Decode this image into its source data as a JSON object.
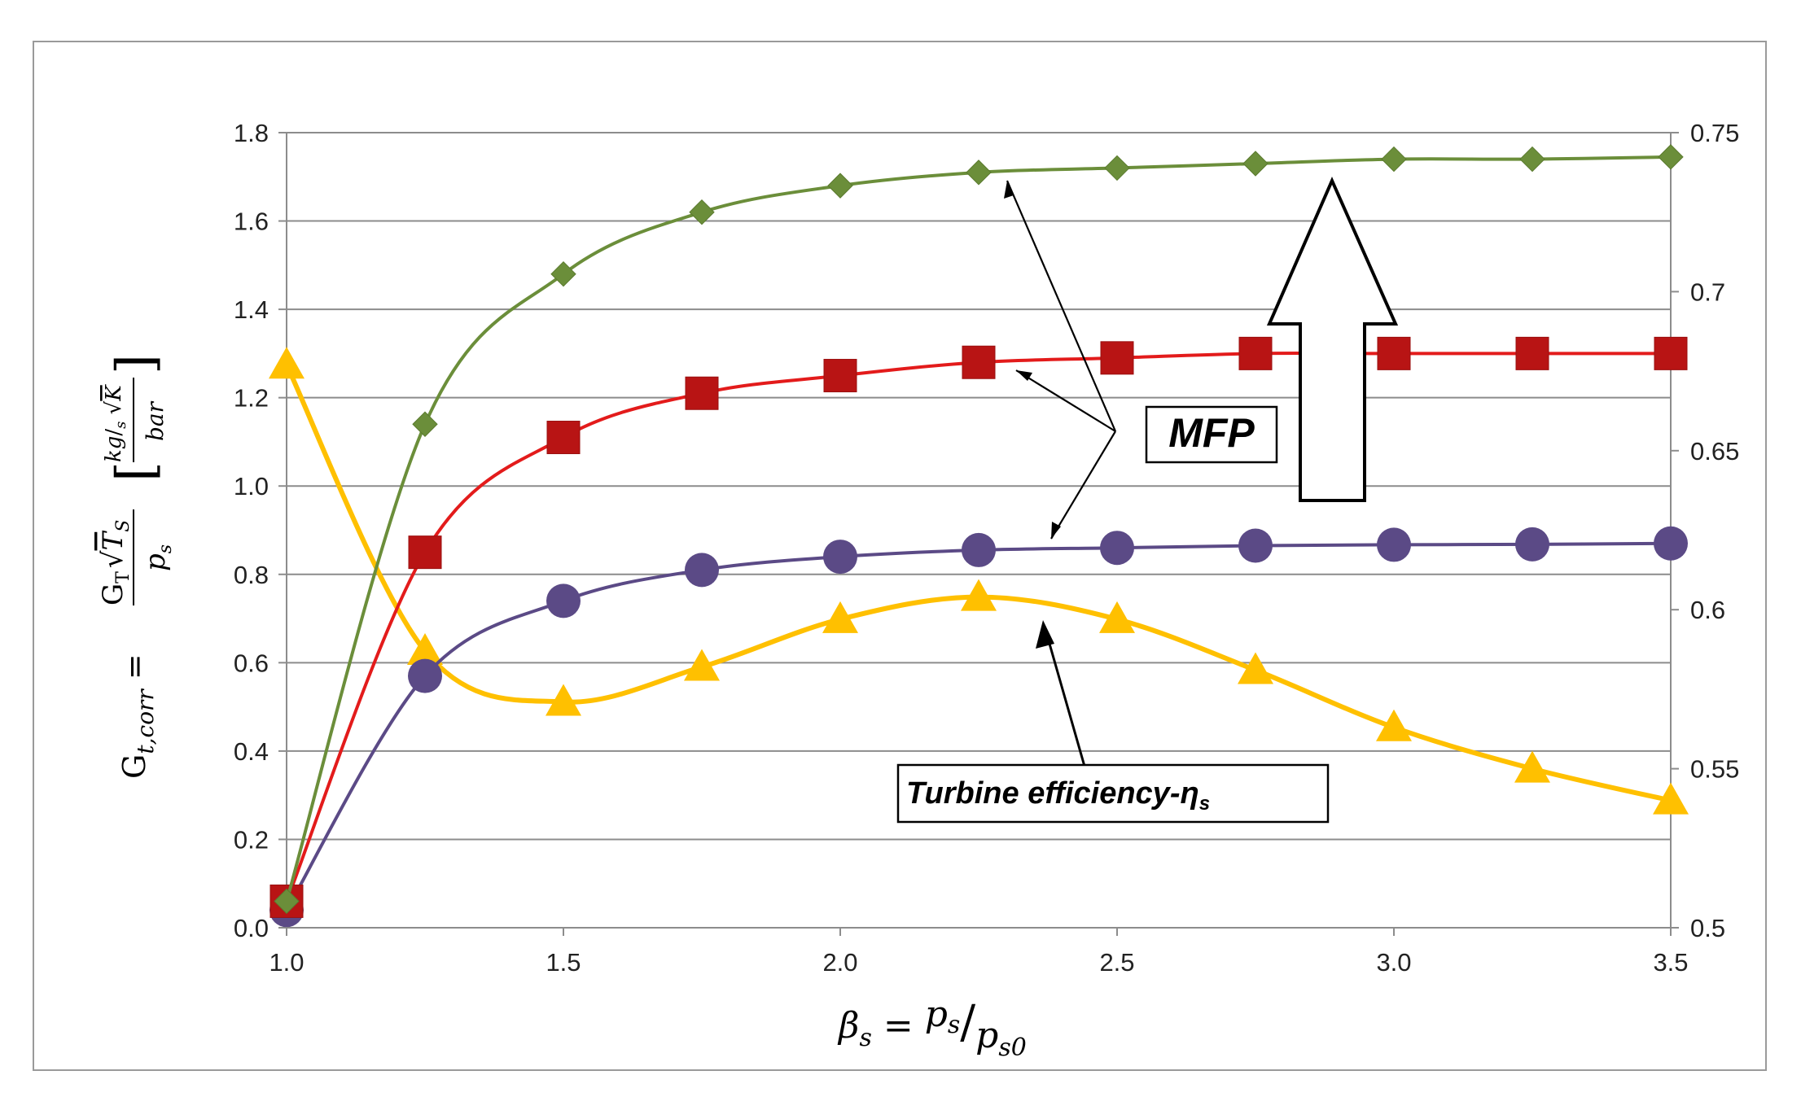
{
  "chart_data": {
    "type": "line",
    "title": "",
    "x": [
      1.0,
      1.25,
      1.5,
      1.75,
      2.0,
      2.25,
      2.5,
      2.75,
      3.0,
      3.25,
      3.5
    ],
    "xlim": [
      1.0,
      3.5
    ],
    "xticks": [
      "1.0",
      "1.5",
      "2.0",
      "2.5",
      "3.0",
      "3.5"
    ],
    "xtick_values": [
      1.0,
      1.5,
      2.0,
      2.5,
      3.0,
      3.5
    ],
    "ylim": [
      0.0,
      1.8
    ],
    "yticks": [
      "0.0",
      "0.2",
      "0.4",
      "0.6",
      "0.8",
      "1.0",
      "1.2",
      "1.4",
      "1.6",
      "1.8"
    ],
    "ytick_values": [
      0.0,
      0.2,
      0.4,
      0.6,
      0.8,
      1.0,
      1.2,
      1.4,
      1.6,
      1.8
    ],
    "y2lim": [
      0.5,
      0.75
    ],
    "y2ticks": [
      "0.5",
      "0.55",
      "0.6",
      "0.65",
      "0.7",
      "0.75"
    ],
    "y2tick_values": [
      0.5,
      0.55,
      0.6,
      0.65,
      0.7,
      0.75
    ],
    "grid": true,
    "series": [
      {
        "name": "MFP (green)",
        "axis": "left",
        "marker": "diamond",
        "color": "#6b8e3a",
        "values": [
          0.06,
          1.14,
          1.48,
          1.62,
          1.68,
          1.71,
          1.72,
          1.73,
          1.74,
          1.74,
          1.745
        ]
      },
      {
        "name": "MFP (red)",
        "axis": "left",
        "marker": "square",
        "color": "#e31b1b",
        "marker_color": "#b81414",
        "values": [
          0.06,
          0.85,
          1.11,
          1.21,
          1.25,
          1.28,
          1.29,
          1.3,
          1.3,
          1.3,
          1.3
        ]
      },
      {
        "name": "MFP (purple)",
        "axis": "left",
        "marker": "circle",
        "color": "#5b4a86",
        "values": [
          0.04,
          0.57,
          0.74,
          0.81,
          0.84,
          0.855,
          0.86,
          0.865,
          0.867,
          0.868,
          0.87
        ]
      },
      {
        "name": "Turbine efficiency",
        "axis": "right",
        "marker": "triangle",
        "color": "#ffc000",
        "values": [
          0.677,
          0.587,
          0.571,
          0.582,
          0.597,
          0.604,
          0.597,
          0.581,
          0.563,
          0.55,
          0.54
        ]
      }
    ],
    "annotations": {
      "mfp": "MFP",
      "eff_main": "Turbine efficiency-",
      "eff_eta": "η",
      "eff_sub": "s"
    },
    "ylabel": {
      "lhs": "G",
      "lhs_sub": "t,corr",
      "eq": " = ",
      "num_g": "G",
      "num_g_sub": "T",
      "num_rad": "T",
      "num_rad_sub": "S",
      "den": "p",
      "den_sub": "s",
      "unit_kg": "kg",
      "unit_slash": "/",
      "unit_s": "s",
      "unit_rad": "K",
      "unit_den": "bar"
    },
    "xlabel": {
      "beta": "β",
      "beta_sub": "s",
      "eq": " = ",
      "p": "p",
      "p_sub": "s",
      "slash": "/",
      "p2": "p",
      "p2_sub": "s0"
    }
  }
}
